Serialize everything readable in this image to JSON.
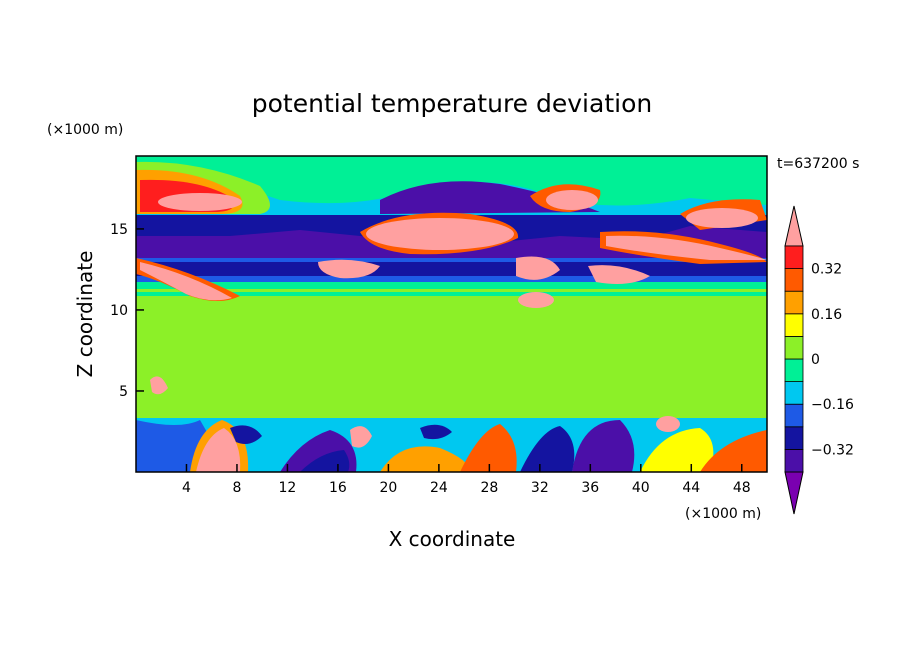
{
  "chart_data": {
    "type": "heatmap",
    "title": "potential temperature deviation",
    "xlabel": "X coordinate",
    "ylabel": "Z coordinate",
    "x_unit": "(×1000 m)",
    "y_unit": "(×1000 m)",
    "time_label": "t=637200 s",
    "xlim": [
      0,
      50
    ],
    "ylim": [
      0,
      19.5
    ],
    "x_ticks": [
      4,
      8,
      12,
      16,
      20,
      24,
      28,
      32,
      36,
      40,
      44,
      48
    ],
    "y_ticks": [
      5,
      10,
      15
    ],
    "colorbar": {
      "levels": [
        -0.48,
        -0.4,
        -0.32,
        -0.24,
        -0.16,
        -0.08,
        0,
        0.08,
        0.16,
        0.24,
        0.32,
        0.4,
        0.48
      ],
      "labeled_ticks": [
        0.32,
        0.16,
        0,
        -0.16,
        -0.32
      ],
      "colors": [
        "#7a00b0",
        "#4b0fa8",
        "#1414a0",
        "#1e5ae6",
        "#00c8f0",
        "#00f096",
        "#8cf028",
        "#ffff00",
        "#ffa000",
        "#ff5a00",
        "#ff1e1e",
        "#ffa0a0"
      ]
    },
    "bands": [
      {
        "z_range": [
          0,
          3.5
        ],
        "pattern": "low-level mixed anomalies between -0.48 and +0.48"
      },
      {
        "z_range": [
          3.5,
          11
        ],
        "pattern": "weak values near 0 to +0.08"
      },
      {
        "z_range": [
          11,
          12
        ],
        "pattern": "-0.08 to 0 band"
      },
      {
        "z_range": [
          12,
          17
        ],
        "pattern": "strong negative layer (-0.48 to -0.24) with embedded positive lenses (+0.48)"
      },
      {
        "z_range": [
          17,
          19.5
        ],
        "pattern": "mixed positive and negative anomalies"
      }
    ]
  }
}
